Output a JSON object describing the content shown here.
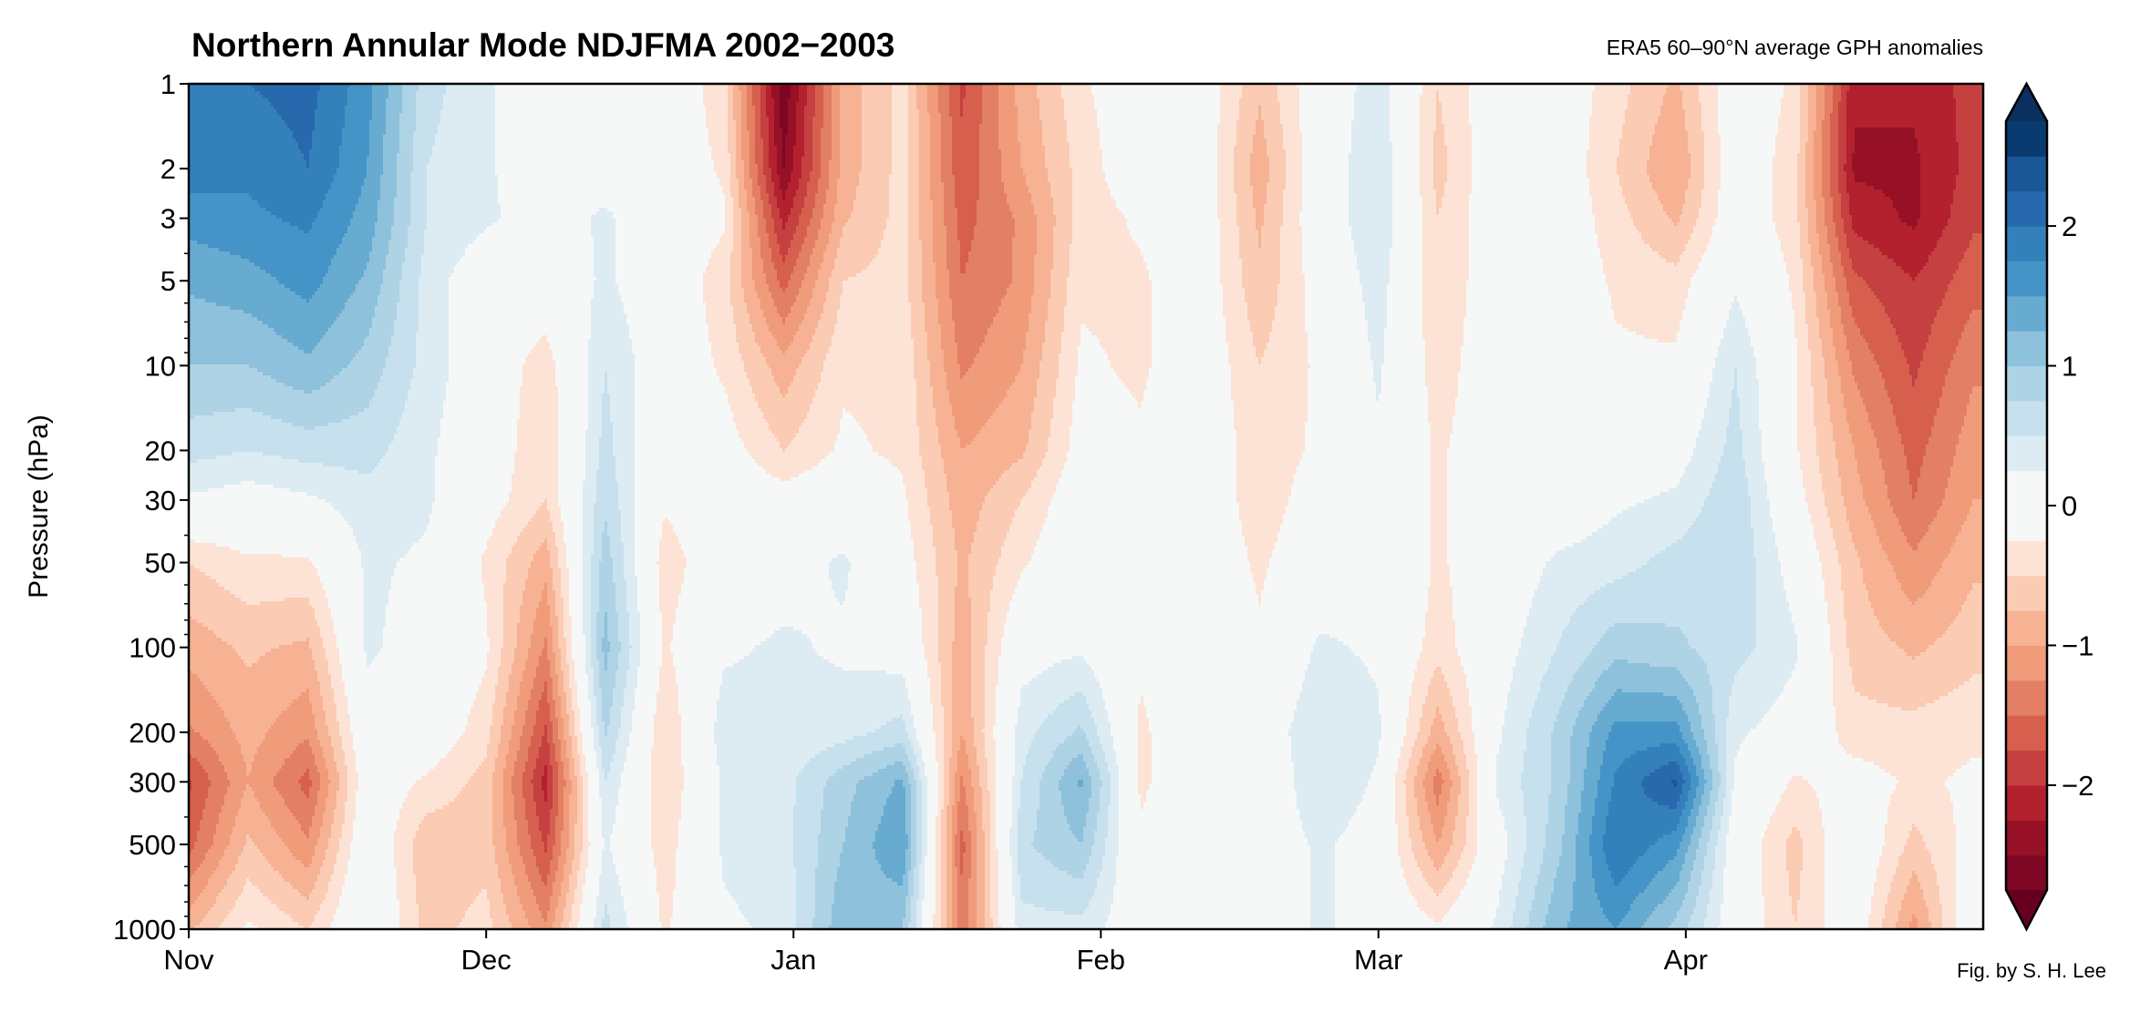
{
  "chart_data": {
    "type": "heatmap",
    "subtype": "filled-contour",
    "title": "Northern Annular Mode NDJFMA 2002−2003",
    "subtitle": "ERA5 60–90°N average GPH anomalies",
    "credit": "Fig. by S. H. Lee",
    "xlabel": "",
    "ylabel": "Pressure (hPa)",
    "y_scale": "log",
    "y_inverted": true,
    "ylim": [
      1000,
      1
    ],
    "xlim_days_since_nov1": [
      0,
      180
    ],
    "x_ticks": [
      {
        "day": 0,
        "label": "Nov"
      },
      {
        "day": 30,
        "label": "Dec"
      },
      {
        "day": 61,
        "label": "Jan"
      },
      {
        "day": 92,
        "label": "Feb"
      },
      {
        "day": 120,
        "label": "Mar"
      },
      {
        "day": 151,
        "label": "Apr"
      }
    ],
    "y_ticks": [
      1,
      2,
      3,
      5,
      10,
      20,
      30,
      50,
      100,
      200,
      300,
      500,
      1000
    ],
    "y_tick_labels": [
      "1",
      "2",
      "3",
      "5",
      "10",
      "20",
      "30",
      "50",
      "100",
      "200",
      "300",
      "500",
      "1000"
    ],
    "levels": [
      -2.75,
      -2.5,
      -2.25,
      -2,
      -1.75,
      -1.5,
      -1.25,
      -1,
      -0.75,
      -0.5,
      -0.25,
      0.25,
      0.5,
      0.75,
      1,
      1.25,
      1.5,
      1.75,
      2,
      2.25,
      2.5,
      2.75
    ],
    "colorbar": {
      "extend": "both",
      "ticks": [
        -2,
        -1,
        0,
        1,
        2
      ],
      "tick_labels": [
        "−2",
        "−1",
        "0",
        "1",
        "2"
      ],
      "colormap": "RdBu_r",
      "colors_low_to_high": [
        "#67001f",
        "#7d0625",
        "#961126",
        "#b2212d",
        "#c54040",
        "#d6604d",
        "#e27f65",
        "#f09b7a",
        "#f6b293",
        "#fbcbb4",
        "#fde3d6",
        "#f6f7f7",
        "#ddecf3",
        "#c7e0ed",
        "#aed3e5",
        "#8dc1dc",
        "#68abd1",
        "#4594c7",
        "#3480bb",
        "#2869ad",
        "#1a5796",
        "#0a3b70",
        "#0b2f5e"
      ]
    },
    "pressure_levels": [
      1,
      2,
      3,
      5,
      10,
      20,
      30,
      50,
      100,
      200,
      300,
      500,
      1000
    ],
    "days": [
      0,
      6,
      12,
      18,
      24,
      30,
      36,
      42,
      48,
      54,
      60,
      66,
      72,
      78,
      84,
      90,
      96,
      102,
      108,
      114,
      120,
      126,
      132,
      138,
      144,
      150,
      156,
      162,
      168,
      174,
      180
    ],
    "values_by_day": [
      [
        1.9,
        1.9,
        1.6,
        1.3,
        1.0,
        0.6,
        0.2,
        -0.5,
        -0.9,
        -1.3,
        -1.8,
        -1.6,
        -0.8
      ],
      [
        2.0,
        1.8,
        1.7,
        1.4,
        1.0,
        0.5,
        0.1,
        -0.3,
        -0.7,
        -0.9,
        -1.0,
        -0.7,
        -0.2
      ],
      [
        2.1,
        2.0,
        1.8,
        1.6,
        1.2,
        0.6,
        0.2,
        -0.3,
        -0.8,
        -1.2,
        -1.6,
        -1.2,
        -0.5
      ],
      [
        1.6,
        1.5,
        1.4,
        1.2,
        0.9,
        0.6,
        0.4,
        0.3,
        0.3,
        0.1,
        0.0,
        0.1,
        0.2
      ],
      [
        0.6,
        0.5,
        0.5,
        0.4,
        0.4,
        0.3,
        0.3,
        0.2,
        0.1,
        0.0,
        -0.3,
        -0.7,
        -0.6
      ],
      [
        0.3,
        0.3,
        0.3,
        0.0,
        0.0,
        0.0,
        -0.1,
        -0.3,
        -0.2,
        -0.4,
        -0.6,
        -0.6,
        -0.4
      ],
      [
        0.0,
        0.0,
        0.1,
        0.0,
        -0.4,
        -0.5,
        -0.5,
        -0.9,
        -1.3,
        -1.8,
        -2.1,
        -1.8,
        -1.2
      ],
      [
        0.0,
        0.1,
        0.3,
        0.3,
        0.5,
        0.6,
        0.7,
        0.9,
        1.1,
        0.8,
        0.5,
        0.3,
        0.6
      ],
      [
        0.0,
        0.0,
        0.0,
        0.0,
        0.0,
        -0.1,
        -0.2,
        -0.4,
        -0.3,
        -0.5,
        -0.5,
        -0.4,
        -0.3
      ],
      [
        -0.4,
        -0.3,
        -0.2,
        -0.4,
        -0.3,
        -0.1,
        0.0,
        0.0,
        0.2,
        0.4,
        0.3,
        0.3,
        0.2
      ],
      [
        -2.7,
        -2.5,
        -2.1,
        -1.6,
        -0.9,
        -0.5,
        -0.1,
        0.1,
        0.3,
        0.3,
        0.4,
        0.4,
        0.3
      ],
      [
        -0.9,
        -0.9,
        -0.8,
        -0.5,
        -0.3,
        -0.2,
        0.0,
        0.3,
        0.2,
        0.4,
        0.9,
        1.0,
        1.2
      ],
      [
        -0.4,
        -0.4,
        -0.4,
        -0.4,
        -0.3,
        -0.3,
        -0.2,
        -0.1,
        0.1,
        0.6,
        1.3,
        1.5,
        1.0
      ],
      [
        -1.8,
        -1.7,
        -1.6,
        -1.5,
        -1.3,
        -1.0,
        -0.9,
        -0.8,
        -0.9,
        -1.0,
        -1.3,
        -1.6,
        -1.4
      ],
      [
        -0.9,
        -1.0,
        -1.2,
        -1.2,
        -1.0,
        -0.8,
        -0.5,
        -0.3,
        0.1,
        0.4,
        0.5,
        0.7,
        0.4
      ],
      [
        -0.3,
        -0.4,
        -0.4,
        -0.3,
        -0.2,
        -0.1,
        0.0,
        0.1,
        0.2,
        0.8,
        1.3,
        1.0,
        0.4
      ],
      [
        0.0,
        0.0,
        -0.2,
        -0.3,
        -0.3,
        -0.2,
        0.0,
        -0.1,
        -0.2,
        -0.3,
        -0.3,
        -0.2,
        0.0
      ],
      [
        0.0,
        0.0,
        0.0,
        0.0,
        0.0,
        0.0,
        0.0,
        0.0,
        0.0,
        0.0,
        0.0,
        0.0,
        0.2
      ],
      [
        -0.7,
        -0.9,
        -0.8,
        -0.7,
        -0.5,
        -0.4,
        -0.4,
        -0.3,
        -0.2,
        0.0,
        -0.1,
        0.0,
        0.0
      ],
      [
        0.0,
        0.0,
        0.0,
        -0.1,
        -0.2,
        -0.2,
        -0.1,
        0.0,
        0.3,
        0.5,
        0.5,
        0.3,
        0.3
      ],
      [
        0.4,
        0.5,
        0.5,
        0.4,
        0.3,
        0.2,
        0.2,
        0.2,
        0.2,
        0.3,
        0.2,
        0.1,
        0.1
      ],
      [
        -0.5,
        -0.6,
        -0.5,
        -0.5,
        -0.4,
        -0.3,
        -0.3,
        -0.3,
        -0.4,
        -0.9,
        -1.4,
        -1.0,
        -0.2
      ],
      [
        0.0,
        0.0,
        0.0,
        0.0,
        0.0,
        0.0,
        0.0,
        0.0,
        0.1,
        0.2,
        0.3,
        0.1,
        0.3
      ],
      [
        0.0,
        0.0,
        0.0,
        0.0,
        0.0,
        0.0,
        0.0,
        0.3,
        0.5,
        0.8,
        0.8,
        0.9,
        1.2
      ],
      [
        -0.4,
        -0.5,
        -0.4,
        -0.3,
        -0.2,
        0.0,
        0.2,
        0.4,
        0.9,
        1.6,
        1.8,
        2.0,
        1.5
      ],
      [
        -0.8,
        -1.0,
        -0.8,
        -0.4,
        -0.2,
        0.1,
        0.3,
        0.6,
        0.8,
        1.6,
        2.3,
        1.6,
        0.9
      ],
      [
        0.0,
        0.0,
        0.0,
        0.2,
        0.5,
        0.6,
        0.7,
        0.7,
        0.6,
        0.3,
        0.2,
        0.0,
        0.0
      ],
      [
        -0.3,
        -0.4,
        -0.4,
        -0.3,
        -0.2,
        -0.2,
        -0.1,
        0.1,
        0.3,
        0.1,
        -0.3,
        -0.6,
        -0.5
      ],
      [
        -2.2,
        -2.3,
        -2.1,
        -1.7,
        -1.3,
        -1.0,
        -0.9,
        -0.7,
        -0.6,
        -0.4,
        -0.1,
        0.1,
        0.0
      ],
      [
        -2.2,
        -2.3,
        -2.3,
        -2.0,
        -1.8,
        -1.6,
        -1.5,
        -1.2,
        -0.8,
        -0.4,
        -0.3,
        -0.6,
        -1.1
      ],
      [
        -1.9,
        -1.9,
        -1.8,
        -1.6,
        -1.3,
        -1.1,
        -1.0,
        -0.8,
        -0.6,
        -0.3,
        -0.2,
        -0.1,
        0.1
      ]
    ]
  }
}
